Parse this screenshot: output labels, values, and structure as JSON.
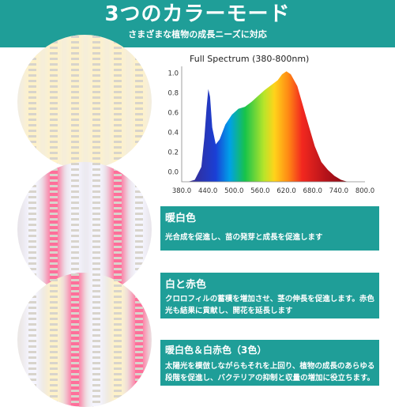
{
  "header": {
    "title": "3つのカラーモード",
    "subtitle": "さまざまな植物の成長ニーズに対応"
  },
  "chart_data": {
    "type": "area",
    "title": "Full Spectrum (380-800nm)",
    "x_ticks": [
      "380.0",
      "440.0",
      "500.0",
      "560.0",
      "620.0",
      "680.0",
      "740.0",
      "800.0"
    ],
    "y_ticks": [
      "0.0",
      "0.2",
      "0.4",
      "0.6",
      "0.8",
      "1.0"
    ],
    "xlim": [
      380,
      800
    ],
    "ylim": [
      -0.1,
      1.07
    ],
    "x": [
      395,
      410,
      425,
      432,
      437,
      441,
      445,
      450,
      458,
      467,
      480,
      495,
      510,
      525,
      540,
      555,
      570,
      585,
      600,
      610,
      620,
      630,
      645,
      665,
      685,
      700,
      715,
      730,
      745,
      760,
      780,
      790
    ],
    "y": [
      -0.1,
      -0.08,
      0.05,
      0.35,
      0.65,
      0.84,
      0.76,
      0.45,
      0.28,
      0.33,
      0.48,
      0.58,
      0.64,
      0.66,
      0.71,
      0.77,
      0.83,
      0.88,
      0.93,
      0.99,
      1.02,
      0.99,
      0.87,
      0.56,
      0.26,
      0.1,
      0.02,
      -0.04,
      -0.08,
      -0.1,
      -0.1,
      -0.1
    ],
    "color_stops": [
      {
        "offset": "0%",
        "color": "#3a2a8a"
      },
      {
        "offset": "16%",
        "color": "#1a3fd6"
      },
      {
        "offset": "24%",
        "color": "#00a0e8"
      },
      {
        "offset": "33%",
        "color": "#17c34a"
      },
      {
        "offset": "44%",
        "color": "#b8e52a"
      },
      {
        "offset": "50%",
        "color": "#ffd31a"
      },
      {
        "offset": "58%",
        "color": "#ff8a14"
      },
      {
        "offset": "66%",
        "color": "#f2281f"
      },
      {
        "offset": "80%",
        "color": "#b4121a"
      },
      {
        "offset": "100%",
        "color": "#6a0810"
      }
    ]
  },
  "modes": [
    {
      "title": "暖白色",
      "description": "光合成を促進し、苗の発芽と成長を促進します"
    },
    {
      "title": "白と赤色",
      "description": "クロロフィルの蓄積を増加させ、茎の伸長を促進します。赤色光も結果に貢献し、開花を延長します"
    },
    {
      "title": "暖白色＆白赤色（3色）",
      "description": "太陽光を模倣しながらもそれを上回り、植物の成長のあらゆる段階を促進し、バクテリアの抑制と収量の増加に役立ちます。"
    }
  ],
  "colors": {
    "teal": "#1f9e98",
    "warm_led": "#fff2c8",
    "white_led": "#f6f6ff",
    "red_led": "#ff6f9a"
  }
}
